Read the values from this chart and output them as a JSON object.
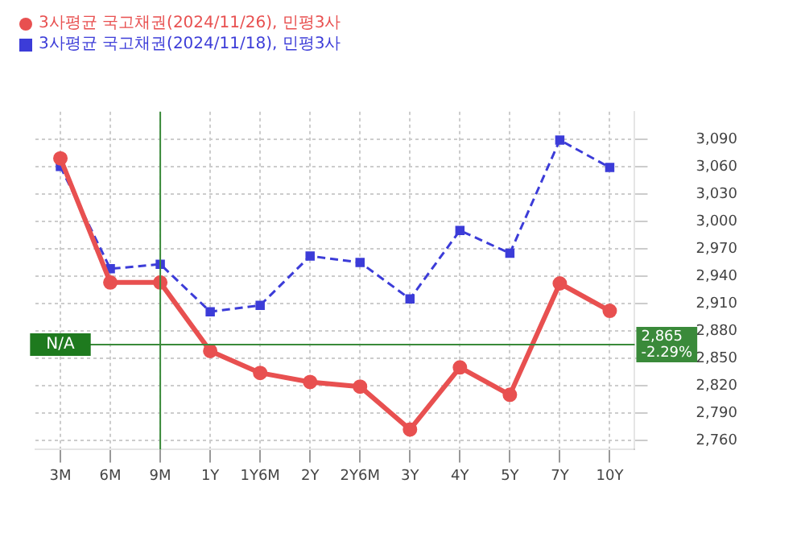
{
  "chart_data": {
    "type": "line",
    "categories": [
      "3M",
      "6M",
      "9M",
      "1Y",
      "1Y6M",
      "2Y",
      "2Y6M",
      "3Y",
      "4Y",
      "5Y",
      "7Y",
      "10Y"
    ],
    "series": [
      {
        "name": "3사평균  국고채권(2024/11/26), 민평3사",
        "color": "#e85050",
        "marker": "circle",
        "line_style": "solid",
        "values": [
          3069,
          2933,
          2933,
          2858,
          2834,
          2824,
          2819,
          2772,
          2840,
          2810,
          2932,
          2902
        ]
      },
      {
        "name": "3사평균  국고채권(2024/11/18), 민평3사",
        "color": "#3c3cd8",
        "marker": "square",
        "line_style": "dashed",
        "values": [
          3060,
          2948,
          2953,
          2901,
          2908,
          2962,
          2955,
          2915,
          2990,
          2965,
          3089,
          3059
        ]
      }
    ],
    "ylim": [
      2750,
      3120
    ],
    "yticks": [
      {
        "value": 2760,
        "label": "2,760"
      },
      {
        "value": 2790,
        "label": "2,790"
      },
      {
        "value": 2820,
        "label": "2,820"
      },
      {
        "value": 2850,
        "label": "2,850"
      },
      {
        "value": 2880,
        "label": "2,880"
      },
      {
        "value": 2910,
        "label": "2,910"
      },
      {
        "value": 2940,
        "label": "2,940"
      },
      {
        "value": 2970,
        "label": "2,970"
      },
      {
        "value": 3000,
        "label": "3,000"
      },
      {
        "value": 3030,
        "label": "3,030"
      },
      {
        "value": 3060,
        "label": "3,060"
      },
      {
        "value": 3090,
        "label": "3,090"
      }
    ],
    "ref_lines": [
      {
        "axis": "y",
        "value": 2865,
        "label": "2,865 -2.29%",
        "color": "#3a8a3a"
      },
      {
        "axis": "x",
        "value": "9M",
        "color": "#3a8a3a"
      }
    ],
    "annotations": [
      {
        "text": "N/A",
        "x": "3M",
        "y": 2865
      }
    ],
    "grid": true,
    "legend": "top left"
  }
}
